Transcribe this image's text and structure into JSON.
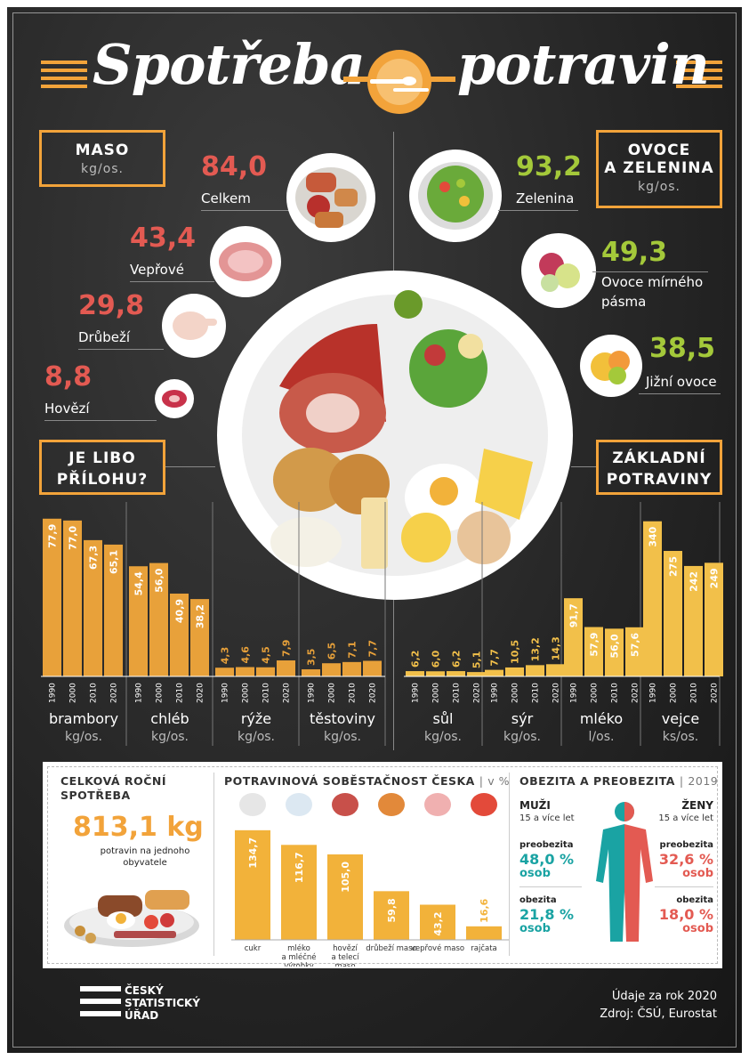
{
  "title": {
    "left": "Spotřeba",
    "right": "potravin"
  },
  "maso": {
    "box_title": "MASO",
    "box_unit": "kg/os.",
    "items": [
      {
        "value": "84,0",
        "label": "Celkem"
      },
      {
        "value": "43,4",
        "label": "Vepřové"
      },
      {
        "value": "29,8",
        "label": "Drůbeží"
      },
      {
        "value": "8,8",
        "label": "Hovězí"
      }
    ]
  },
  "ovoce": {
    "box_title_1": "OVOCE",
    "box_title_2": "A ZELENINA",
    "box_unit": "kg/os.",
    "items": [
      {
        "value": "93,2",
        "label": "Zelenina"
      },
      {
        "value": "49,3",
        "label": "Ovoce mírného",
        "label2": "pásma"
      },
      {
        "value": "38,5",
        "label": "Jižní ovoce"
      }
    ]
  },
  "priloha_box": {
    "line1": "JE LIBO",
    "line2": "PŘÍLOHU?"
  },
  "zakladni_box": {
    "line1": "ZÁKLADNÍ",
    "line2": "POTRAVINY"
  },
  "chart_data": [
    {
      "type": "bar",
      "title": "JE LIBO PŘÍLOHU?",
      "years": [
        "1990",
        "2000",
        "2010",
        "2020"
      ],
      "series": [
        {
          "name": "brambory",
          "unit": "kg/os.",
          "values": [
            77.9,
            77.0,
            67.3,
            65.1
          ],
          "labels": [
            "77,9",
            "77,0",
            "67,3",
            "65,1"
          ]
        },
        {
          "name": "chléb",
          "unit": "kg/os.",
          "values": [
            54.4,
            56.0,
            40.9,
            38.2
          ],
          "labels": [
            "54,4",
            "56,0",
            "40,9",
            "38,2"
          ]
        },
        {
          "name": "rýže",
          "unit": "kg/os.",
          "values": [
            4.3,
            4.6,
            4.5,
            7.9
          ],
          "labels": [
            "4,3",
            "4,6",
            "4,5",
            "7,9"
          ]
        },
        {
          "name": "těstoviny",
          "unit": "kg/os.",
          "values": [
            3.5,
            6.5,
            7.1,
            7.7
          ],
          "labels": [
            "3,5",
            "6,5",
            "7,1",
            "7,7"
          ]
        }
      ],
      "color": "#e8a13a",
      "scale_max": 80
    },
    {
      "type": "bar",
      "title": "ZÁKLADNÍ POTRAVINY",
      "years": [
        "1990",
        "2000",
        "2010",
        "2020"
      ],
      "series": [
        {
          "name": "sůl",
          "unit": "kg/os.",
          "values": [
            6.2,
            6.0,
            6.2,
            5.1
          ],
          "labels": [
            "6,2",
            "6,0",
            "6,2",
            "5,1"
          ],
          "scale_max": 190
        },
        {
          "name": "sýr",
          "unit": "kg/os.",
          "values": [
            7.7,
            10.5,
            13.2,
            14.3
          ],
          "labels": [
            "7,7",
            "10,5",
            "13,2",
            "14,3"
          ],
          "scale_max": 190
        },
        {
          "name": "mléko",
          "unit": "l/os.",
          "values": [
            91.7,
            57.9,
            56.0,
            57.6
          ],
          "labels": [
            "91,7",
            "57,9",
            "56,0",
            "57,6"
          ],
          "scale_max": 190
        },
        {
          "name": "vejce",
          "unit": "ks/os.",
          "values": [
            340,
            275,
            242,
            249
          ],
          "labels": [
            "340",
            "275",
            "242",
            "249"
          ],
          "scale_max": 355
        }
      ],
      "color": "#f2c04a"
    },
    {
      "type": "bar",
      "title": "POTRAVINOVÁ SOBĚSTAČNOST ČESKA",
      "unit": "v %",
      "categories": [
        "cukr",
        "mléko a mléčné výrobky",
        "hovězí a telecí maso",
        "drůbeží maso",
        "vepřové maso",
        "rajčata"
      ],
      "values": [
        134.7,
        116.7,
        105.0,
        59.8,
        43.2,
        16.6
      ],
      "labels": [
        "134,7",
        "116,7",
        "105,0",
        "59,8",
        "43,2",
        "16,6"
      ],
      "color": "#f2b23a",
      "scale_max": 140
    }
  ],
  "summary": {
    "title_1": "CELKOVÁ ROČNÍ",
    "title_2": "SPOTŘEBA",
    "value": "813,1 kg",
    "desc_1": "potravin na jednoho",
    "desc_2": "obyvatele"
  },
  "sobestacnost": {
    "title": "POTRAVINOVÁ SOBĚSTAČNOST ČESKA",
    "sep": "|",
    "unit": "v %"
  },
  "obezita": {
    "title": "OBEZITA A PREOBEZITA",
    "sep": "|",
    "year": "2019",
    "men": {
      "head": "MUŽI",
      "sub": "15 a více let",
      "pre_label": "preobezita",
      "pre_value": "48,0 %",
      "pre_unit": "osob",
      "ob_label": "obezita",
      "ob_value": "21,8 %",
      "ob_unit": "osob"
    },
    "women": {
      "head": "ŽENY",
      "sub": "15 a více let",
      "pre_label": "preobezita",
      "pre_value": "32,6 %",
      "pre_unit": "osob",
      "ob_label": "obezita",
      "ob_value": "18,0 %",
      "ob_unit": "osob"
    }
  },
  "footer": {
    "logo_1": "ČESKÝ",
    "logo_2": "STATISTICKÝ",
    "logo_3": "ÚŘAD",
    "data_year": "Údaje za rok 2020",
    "source": "Zdroj: ČSÚ, Eurostat"
  },
  "colors": {
    "orange": "#f2a33a",
    "bar_left": "#e8a13a",
    "bar_right": "#f2c04a",
    "red": "#e35a52",
    "green": "#a4c93a",
    "teal": "#1aa3a3"
  },
  "icons": [
    "plate-cutlery-icon",
    "meat-platter-icon",
    "pork-icon",
    "chicken-icon",
    "beef-icon",
    "salad-icon",
    "fruit-bowl-icon",
    "citrus-icon",
    "food-plate-icon",
    "sugar-icon",
    "milk-icon",
    "beef-steak-icon",
    "drumstick-icon",
    "pork-slice-icon",
    "tomato-icon",
    "body-silhouette-icon"
  ]
}
